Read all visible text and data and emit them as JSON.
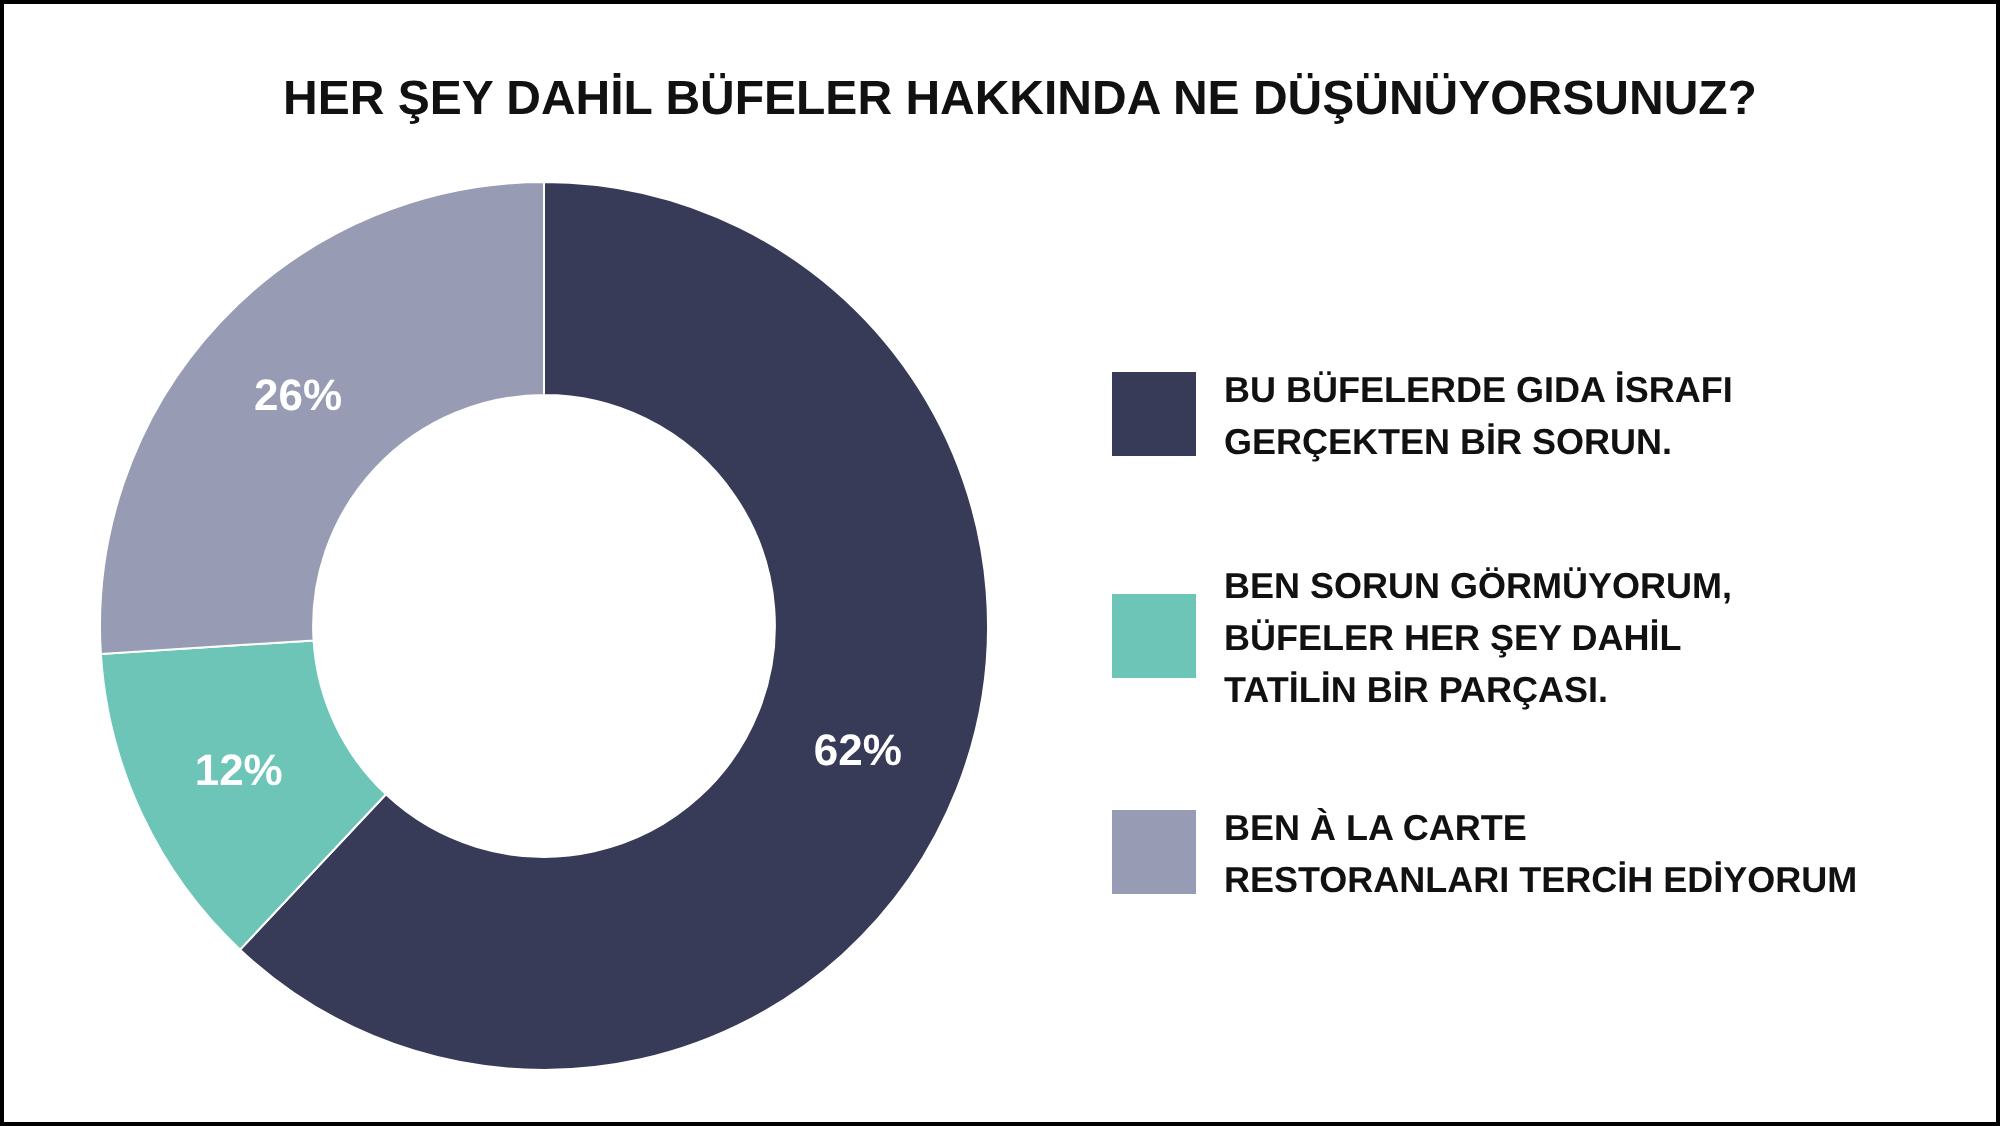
{
  "chart_data": {
    "type": "donut",
    "title": "HER ŞEY DAHİL BÜFELER HAKKINDA NE DÜŞÜNÜYORSUNUZ?",
    "categories": [
      "BU BÜFELERDE GIDA İSRAFI\nGERÇEKTEN BİR SORUN.",
      "BEN SORUN GÖRMÜYORUM,\nBÜFELER HER ŞEY DAHİL\nTATİLİN BİR PARÇASI.",
      "BEN À LA CARTE\nRESTORANLARI TERCİH EDİYORUM"
    ],
    "values": [
      62,
      12,
      26
    ],
    "value_labels": [
      "62%",
      "12%",
      "26%"
    ],
    "colors": [
      "#383b58",
      "#6dc5b8",
      "#979bb4"
    ],
    "legend": "right"
  }
}
